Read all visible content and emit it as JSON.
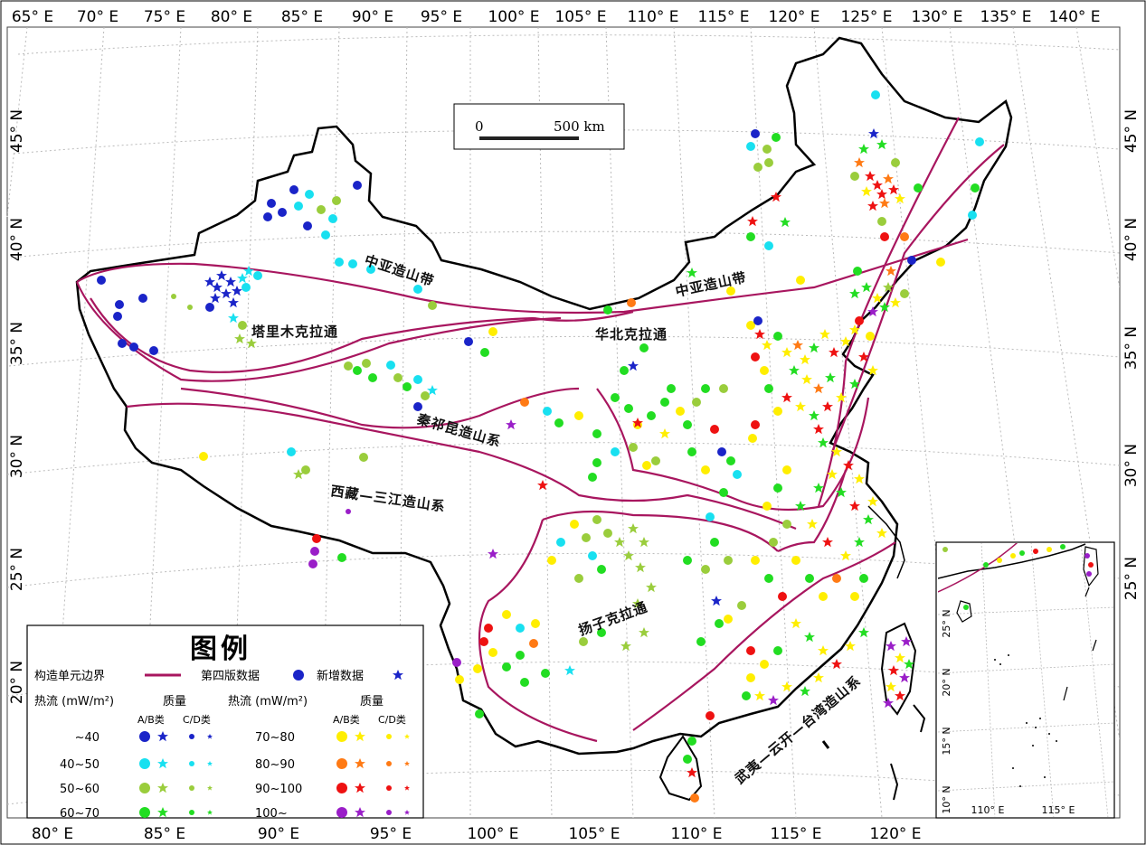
{
  "map": {
    "top_ticks": [
      "65° E",
      "70° E",
      "75° E",
      "80° E",
      "85° E",
      "90° E",
      "95° E",
      "100° E",
      "105° E",
      "110° E",
      "115° E",
      "120° E",
      "125° E",
      "130° E",
      "135° E",
      "140° E"
    ],
    "bottom_ticks": [
      "80° E",
      "85° E",
      "90° E",
      "95° E",
      "100° E",
      "105° E",
      "110° E",
      "115° E",
      "120° E"
    ],
    "left_ticks": [
      "45° N",
      "40° N",
      "35° N",
      "30° N",
      "25° N",
      "20° N"
    ],
    "right_ticks": [
      "45° N",
      "40° N",
      "35° N",
      "30° N",
      "25° N"
    ],
    "scale_bar": {
      "start": "0",
      "end": "500 km"
    },
    "units": {
      "central_asia_west": "中亚造山带",
      "central_asia_east": "中亚造山带",
      "tarim": "塔里木克拉通",
      "north_china": "华北克拉通",
      "qilian_kunlun": "秦祁昆造山系",
      "tibet_sanjiang": "西藏—三江造山系",
      "yangtze": "扬子克拉通",
      "wuyi_taiwan": "武夷—云开—台湾造山系"
    }
  },
  "legend": {
    "title": "图例",
    "boundary_label": "构造单元边界",
    "v4_label": "第四版数据",
    "new_label": "新增数据",
    "heat_header_1": "热流 (mW/m²)",
    "heat_header_2": "热流 (mW/m²)",
    "quality_header_1": "质量",
    "quality_header_2": "质量",
    "ab_1": "A/B类",
    "cd_1": "C/D类",
    "ab_2": "A/B类",
    "cd_2": "C/D类",
    "left_ranges": [
      "~40",
      "40~50",
      "50~60",
      "60~70"
    ],
    "right_ranges": [
      "70~80",
      "80~90",
      "90~100",
      "100~"
    ],
    "colors_left": [
      "#1a24c8",
      "#18e0f0",
      "#9acd3c",
      "#22dd22"
    ],
    "colors_right": [
      "#ffee00",
      "#ff7a14",
      "#ee1111",
      "#9a1ec8"
    ]
  },
  "inset": {
    "ticks_left": [
      "25° N",
      "20° N",
      "15° N",
      "10° N"
    ],
    "ticks_bottom": [
      "110° E",
      "115° E"
    ]
  }
}
